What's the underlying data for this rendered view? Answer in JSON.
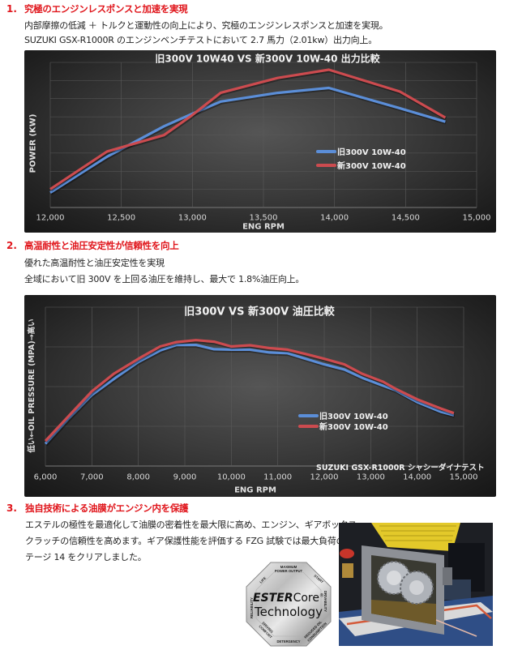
{
  "sections": [
    {
      "number": "1.",
      "title": "究極のエンジンレスポンスと加速を実現",
      "lines": [
        "内部摩擦の低減 ＋ トルクと運動性の向上により、究極のエンジンレスポンスと加速を実現。",
        "SUZUKI GSX-R1000R のエンジンベンチテストにおいて 2.7 馬力（2.01kw）出力向上。"
      ]
    },
    {
      "number": "2.",
      "title": "高温耐性と油圧安定性が信頼性を向上",
      "lines": [
        "優れた高温耐性と油圧安定性を実現",
        "全域において旧 300V を上回る油圧を維持し、最大で 1.8%油圧向上。"
      ]
    },
    {
      "number": "3.",
      "title": "独自技術による油膜がエンジン内を保護",
      "lines": [
        "エステルの極性を最適化して油膜の密着性を最大限に高め、エンジン、ギアボックス、",
        "クラッチの信頼性を高めます。ギア保護性能を評価する FZG 試験では最大負荷のス",
        "テージ 14 をクリアしました。"
      ]
    }
  ],
  "colors": {
    "accent_red": "#e0161c",
    "series_old": "#5b8ed8",
    "series_new": "#cc4b4f"
  },
  "chart_data": [
    {
      "type": "line",
      "title": "旧300V 10W40 VS 新300V 10W-40  出力比較",
      "xlabel": "ENG RPM",
      "ylabel": "POWER (KW)",
      "x_ticks": [
        "12,000",
        "12,500",
        "13,000",
        "13,500",
        "14,000",
        "14,500",
        "15,000"
      ],
      "xlim": [
        12000,
        15000
      ],
      "ylim": [
        0,
        8
      ],
      "y_units_note": "relative gridline units (no y tick labels shown)",
      "grid": true,
      "legend_position": "inside-right-middle",
      "series": [
        {
          "name": "旧300V 10W-40",
          "color": "#5b8ed8",
          "x": [
            12000,
            12400,
            12800,
            13000,
            13200,
            13600,
            13960,
            14460,
            14780
          ],
          "values": [
            0.82,
            2.8,
            4.48,
            5.17,
            5.84,
            6.32,
            6.59,
            5.47,
            4.73
          ]
        },
        {
          "name": "新300V 10W-40",
          "color": "#cc4b4f",
          "x": [
            12000,
            12400,
            12800,
            13000,
            13200,
            13600,
            13960,
            14460,
            14780
          ],
          "values": [
            1.01,
            3.09,
            3.99,
            5.1,
            6.33,
            7.14,
            7.6,
            6.39,
            4.95
          ]
        }
      ]
    },
    {
      "type": "line",
      "title": "旧300V  VS 新300V 油圧比較",
      "xlabel": "ENG RPM",
      "ylabel": "低い←OIL PRESSURE (MPA)→高い",
      "annotation": "SUZUKI GSX-R1000R シャシーダイナテスト",
      "x_ticks": [
        "6,000",
        "7,000",
        "8,000",
        "9,000",
        "10,000",
        "11,000",
        "12,000",
        "13,000",
        "14,000",
        "15,000"
      ],
      "xlim": [
        6000,
        15000
      ],
      "ylim": [
        0,
        4
      ],
      "y_units_note": "relative gridline units (no y tick labels shown)",
      "grid": true,
      "legend_position": "inside-right-lower",
      "series": [
        {
          "name": "旧300V 10W-40",
          "color": "#5b8ed8",
          "x": [
            6000,
            6500,
            7000,
            7470,
            8000,
            8470,
            8820,
            9240,
            9630,
            10000,
            10400,
            10820,
            11210,
            11600,
            12000,
            12430,
            12820,
            13270,
            13530,
            14000,
            14500,
            14790
          ],
          "values": [
            0.56,
            1.2,
            1.79,
            2.19,
            2.62,
            2.91,
            3.05,
            3.05,
            2.94,
            2.93,
            2.93,
            2.86,
            2.84,
            2.7,
            2.56,
            2.43,
            2.22,
            2.02,
            1.91,
            1.61,
            1.37,
            1.28
          ]
        },
        {
          "name": "新300V 10W-40",
          "color": "#cc4b4f",
          "x": [
            6000,
            6500,
            7000,
            7470,
            8000,
            8470,
            8820,
            9240,
            9630,
            10000,
            10400,
            10820,
            11210,
            11600,
            12000,
            12430,
            12820,
            13270,
            13530,
            14000,
            14500,
            14790
          ],
          "values": [
            0.63,
            1.26,
            1.88,
            2.32,
            2.7,
            3.01,
            3.12,
            3.17,
            3.13,
            3.01,
            3.04,
            2.97,
            2.93,
            2.82,
            2.7,
            2.56,
            2.32,
            2.12,
            1.95,
            1.68,
            1.45,
            1.33
          ]
        }
      ]
    }
  ],
  "badge": {
    "brand_bold": "ESTER",
    "brand_light": "Core",
    "registered": "®",
    "line2": "Technology",
    "ring_labels": [
      "MAXIMUM POWER OUTPUT",
      "START",
      "DRIVABILITY",
      "REDUCED OIL CONSUMPTION",
      "DETERGENCY",
      "DRIVING COMFORT",
      "RELIABILITY",
      "LIFE"
    ]
  },
  "photo": {
    "description": "FZG gear test rig"
  }
}
